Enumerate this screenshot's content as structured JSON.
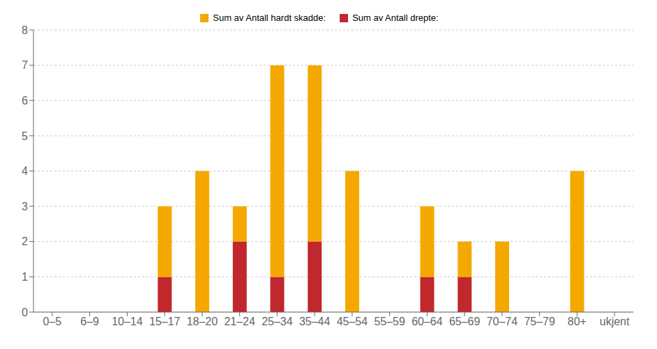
{
  "chart_data": {
    "type": "bar",
    "stacked": true,
    "categories": [
      "0–5",
      "6–9",
      "10–14",
      "15–17",
      "18–20",
      "21–24",
      "25–34",
      "35–44",
      "45–54",
      "55–59",
      "60–64",
      "65–69",
      "70–74",
      "75–79",
      "80+",
      "ukjent"
    ],
    "series": [
      {
        "name": "Sum av Antall drepte:",
        "color": "#C0282D",
        "values": [
          0,
          0,
          0,
          1,
          0,
          2,
          1,
          2,
          0,
          0,
          1,
          1,
          0,
          0,
          0,
          0
        ]
      },
      {
        "name": "Sum av Antall hardt skadde:",
        "color": "#F5A800",
        "values": [
          0,
          0,
          0,
          2,
          4,
          1,
          6,
          5,
          4,
          0,
          2,
          1,
          2,
          0,
          4,
          0
        ]
      }
    ],
    "ylim": [
      0,
      8
    ],
    "yticks": [
      0,
      1,
      2,
      3,
      4,
      5,
      6,
      7,
      8
    ],
    "grid": true,
    "legend": "top"
  }
}
